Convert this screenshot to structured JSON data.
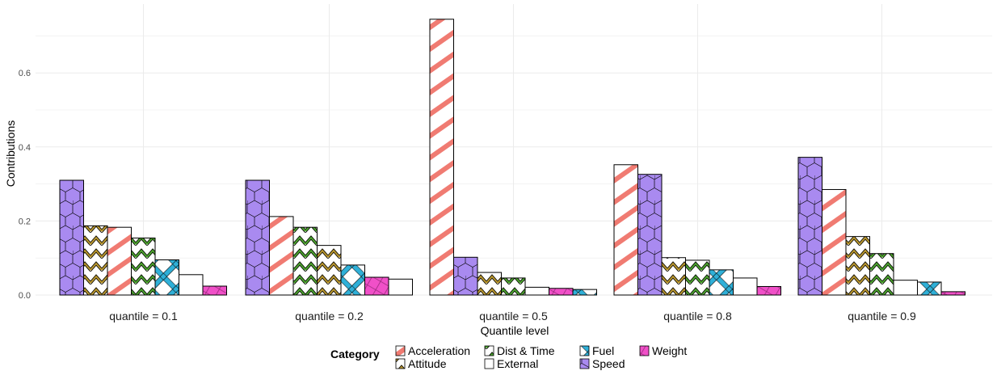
{
  "chart_data": {
    "type": "bar",
    "xlabel": "Quantile level",
    "ylabel": "Contributions",
    "ylim": [
      0,
      0.78
    ],
    "y_ticks": [
      "0.0",
      "0.2",
      "0.4",
      "0.6"
    ],
    "y_tick_values": [
      0,
      0.2,
      0.4,
      0.6
    ],
    "grid": true,
    "legend": {
      "title": "Category",
      "position": "bottom"
    },
    "categories": [
      {
        "name": "Acceleration",
        "color": "#F07B72",
        "pattern": "stripe"
      },
      {
        "name": "Attitude",
        "color": "#B8962E",
        "pattern": "zigzag"
      },
      {
        "name": "Dist & Time",
        "color": "#4CA32E",
        "pattern": "zigzag"
      },
      {
        "name": "External",
        "color": "#FFFFFF",
        "pattern": "none"
      },
      {
        "name": "Fuel",
        "color": "#2FB0D8",
        "pattern": "crosshatch"
      },
      {
        "name": "Speed",
        "color": "#A98AF0",
        "pattern": "hexagon"
      },
      {
        "name": "Weight",
        "color": "#F050C8",
        "pattern": "crosshatch-fine"
      }
    ],
    "facets": [
      {
        "label": "quantile = 0.1",
        "bars": [
          {
            "category": "Speed",
            "value": 0.31
          },
          {
            "category": "Attitude",
            "value": 0.187
          },
          {
            "category": "Acceleration",
            "value": 0.183
          },
          {
            "category": "Dist & Time",
            "value": 0.154
          },
          {
            "category": "Fuel",
            "value": 0.095
          },
          {
            "category": "External",
            "value": 0.055
          },
          {
            "category": "Weight",
            "value": 0.024
          }
        ]
      },
      {
        "label": "quantile = 0.2",
        "bars": [
          {
            "category": "Speed",
            "value": 0.31
          },
          {
            "category": "Acceleration",
            "value": 0.212
          },
          {
            "category": "Dist & Time",
            "value": 0.183
          },
          {
            "category": "Attitude",
            "value": 0.134
          },
          {
            "category": "Fuel",
            "value": 0.081
          },
          {
            "category": "Weight",
            "value": 0.048
          },
          {
            "category": "External",
            "value": 0.043
          }
        ]
      },
      {
        "label": "quantile = 0.5",
        "bars": [
          {
            "category": "Acceleration",
            "value": 0.745
          },
          {
            "category": "Speed",
            "value": 0.102
          },
          {
            "category": "Attitude",
            "value": 0.061
          },
          {
            "category": "Dist & Time",
            "value": 0.046
          },
          {
            "category": "External",
            "value": 0.021
          },
          {
            "category": "Weight",
            "value": 0.018
          },
          {
            "category": "Fuel",
            "value": 0.015
          }
        ]
      },
      {
        "label": "quantile = 0.8",
        "bars": [
          {
            "category": "Acceleration",
            "value": 0.352
          },
          {
            "category": "Speed",
            "value": 0.326
          },
          {
            "category": "Attitude",
            "value": 0.101
          },
          {
            "category": "Dist & Time",
            "value": 0.094
          },
          {
            "category": "Fuel",
            "value": 0.068
          },
          {
            "category": "External",
            "value": 0.046
          },
          {
            "category": "Weight",
            "value": 0.023
          }
        ]
      },
      {
        "label": "quantile = 0.9",
        "bars": [
          {
            "category": "Speed",
            "value": 0.372
          },
          {
            "category": "Acceleration",
            "value": 0.285
          },
          {
            "category": "Attitude",
            "value": 0.158
          },
          {
            "category": "Dist & Time",
            "value": 0.112
          },
          {
            "category": "External",
            "value": 0.04
          },
          {
            "category": "Fuel",
            "value": 0.035
          },
          {
            "category": "Weight",
            "value": 0.009
          }
        ]
      }
    ]
  }
}
